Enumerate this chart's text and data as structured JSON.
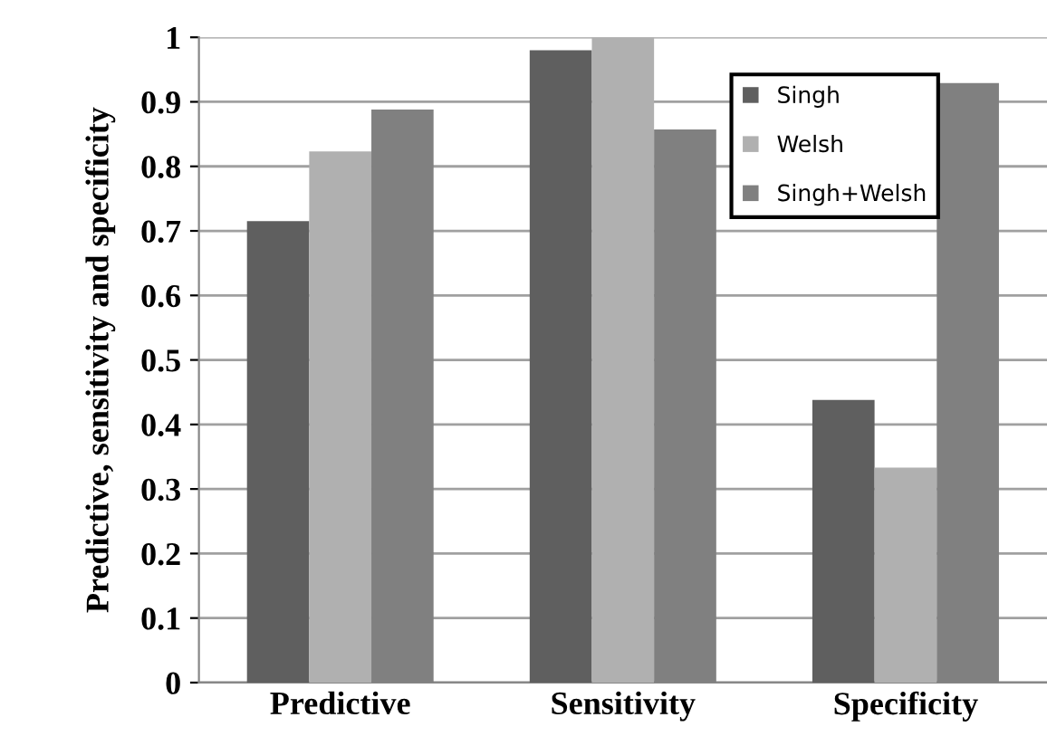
{
  "chart_data": {
    "type": "bar",
    "ylabel": "Predictive, sensitivity and specificity",
    "categories": [
      "Predictive",
      "Sensitivity",
      "Specificity"
    ],
    "series": [
      {
        "name": "Singh",
        "color": "#5f5f5f",
        "values": [
          0.715,
          0.98,
          0.438
        ]
      },
      {
        "name": "Welsh",
        "color": "#b0b0b0",
        "values": [
          0.823,
          1.0,
          0.333
        ]
      },
      {
        "name": "Singh+Welsh",
        "color": "#808080",
        "values": [
          0.888,
          0.857,
          0.929
        ]
      }
    ],
    "ylim": [
      0,
      1
    ],
    "yticks": [
      0,
      0.1,
      0.2,
      0.3,
      0.4,
      0.5,
      0.6,
      0.7,
      0.8,
      0.9,
      1
    ],
    "grid": "y",
    "legend": "top right"
  }
}
